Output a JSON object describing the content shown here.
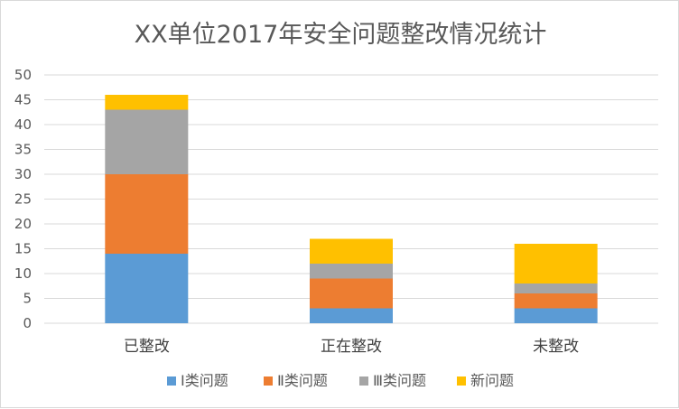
{
  "chart_data": {
    "type": "bar",
    "stacked": true,
    "title": "XX单位2017年安全问题整改情况统计",
    "xlabel": "",
    "ylabel": "",
    "categories": [
      "已整改",
      "正在整改",
      "未整改"
    ],
    "series": [
      {
        "name": "Ⅰ类问题",
        "color": "#5b9bd5",
        "values": [
          14,
          3,
          3
        ]
      },
      {
        "name": "Ⅱ类问题",
        "color": "#ed7d31",
        "values": [
          16,
          6,
          3
        ]
      },
      {
        "name": "Ⅲ类问题",
        "color": "#a5a5a5",
        "values": [
          13,
          3,
          2
        ]
      },
      {
        "name": "新问题",
        "color": "#ffc000",
        "values": [
          3,
          5,
          8
        ]
      }
    ],
    "ylim": [
      0,
      50
    ],
    "yticks": [
      "0",
      "5",
      "10",
      "15",
      "20",
      "25",
      "30",
      "35",
      "40",
      "45",
      "50"
    ],
    "grid": true,
    "legend_position": "bottom"
  }
}
